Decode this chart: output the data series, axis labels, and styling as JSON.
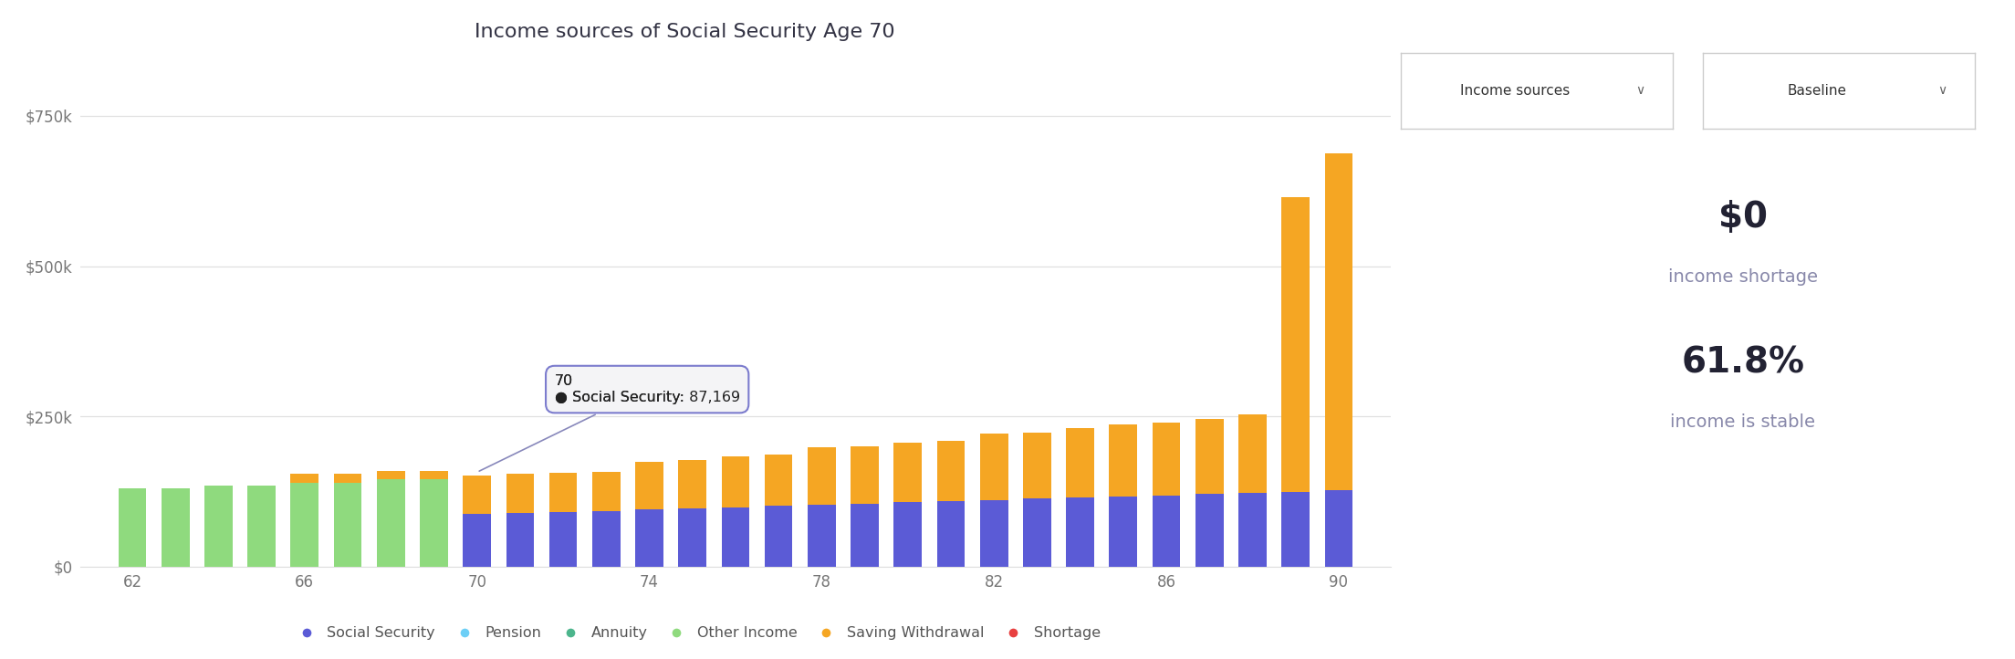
{
  "title": "Income sources of Social Security Age 70",
  "ages": [
    62,
    63,
    64,
    65,
    66,
    67,
    68,
    69,
    70,
    71,
    72,
    73,
    74,
    75,
    76,
    77,
    78,
    79,
    80,
    81,
    82,
    83,
    84,
    85,
    86,
    87,
    88,
    89,
    90
  ],
  "social_security": [
    0,
    0,
    0,
    0,
    0,
    0,
    0,
    0,
    87169,
    89000,
    91000,
    93000,
    95000,
    97000,
    99000,
    101000,
    103000,
    105000,
    107000,
    109000,
    111000,
    113000,
    115000,
    117000,
    119000,
    121000,
    123000,
    125000,
    127000
  ],
  "pension": [
    0,
    0,
    0,
    0,
    0,
    0,
    0,
    0,
    0,
    0,
    0,
    0,
    0,
    0,
    0,
    0,
    0,
    0,
    0,
    0,
    0,
    0,
    0,
    0,
    0,
    0,
    0,
    0,
    0
  ],
  "annuity": [
    0,
    0,
    0,
    0,
    0,
    0,
    0,
    0,
    0,
    0,
    0,
    0,
    0,
    0,
    0,
    0,
    0,
    0,
    0,
    0,
    0,
    0,
    0,
    0,
    0,
    0,
    0,
    0,
    0
  ],
  "other_income": [
    130000,
    130000,
    135000,
    135000,
    140000,
    140000,
    145000,
    145000,
    0,
    0,
    0,
    0,
    0,
    0,
    0,
    0,
    0,
    0,
    0,
    0,
    0,
    0,
    0,
    0,
    0,
    0,
    0,
    0,
    0
  ],
  "saving_withdrawal": [
    0,
    0,
    0,
    0,
    15000,
    15000,
    15000,
    15000,
    65000,
    65000,
    65000,
    65000,
    80000,
    80000,
    85000,
    85000,
    95000,
    95000,
    100000,
    100000,
    110000,
    110000,
    115000,
    120000,
    120000,
    125000,
    130000,
    490000,
    560000
  ],
  "shortage": [
    0,
    0,
    0,
    0,
    0,
    0,
    0,
    0,
    0,
    0,
    0,
    0,
    0,
    0,
    0,
    0,
    0,
    0,
    0,
    0,
    0,
    0,
    0,
    0,
    0,
    0,
    0,
    0,
    0
  ],
  "colors": {
    "social_security": "#5b5bd6",
    "pension": "#6dcff6",
    "annuity": "#4cb58c",
    "other_income": "#8fda7e",
    "saving_withdrawal": "#f5a623",
    "shortage": "#e84040"
  },
  "ylim": [
    0,
    800000
  ],
  "yticks": [
    0,
    250000,
    500000,
    750000
  ],
  "ytick_labels": [
    "$0",
    "$250k",
    "$500k",
    "$750k"
  ],
  "xticks": [
    62,
    66,
    70,
    74,
    78,
    82,
    86,
    90
  ],
  "background_color": "#ffffff",
  "stat1_value": "$0",
  "stat1_label": "income shortage",
  "stat2_value": "61.8%",
  "stat2_label": "income is stable",
  "dropdown1": "Income sources",
  "dropdown2": "Baseline",
  "legend_items": [
    "Social Security",
    "Pension",
    "Annuity",
    "Other Income",
    "Saving Withdrawal",
    "Shortage"
  ],
  "tooltip_age_idx": 8,
  "tooltip_text": "70\n● Social Security: 87,169"
}
